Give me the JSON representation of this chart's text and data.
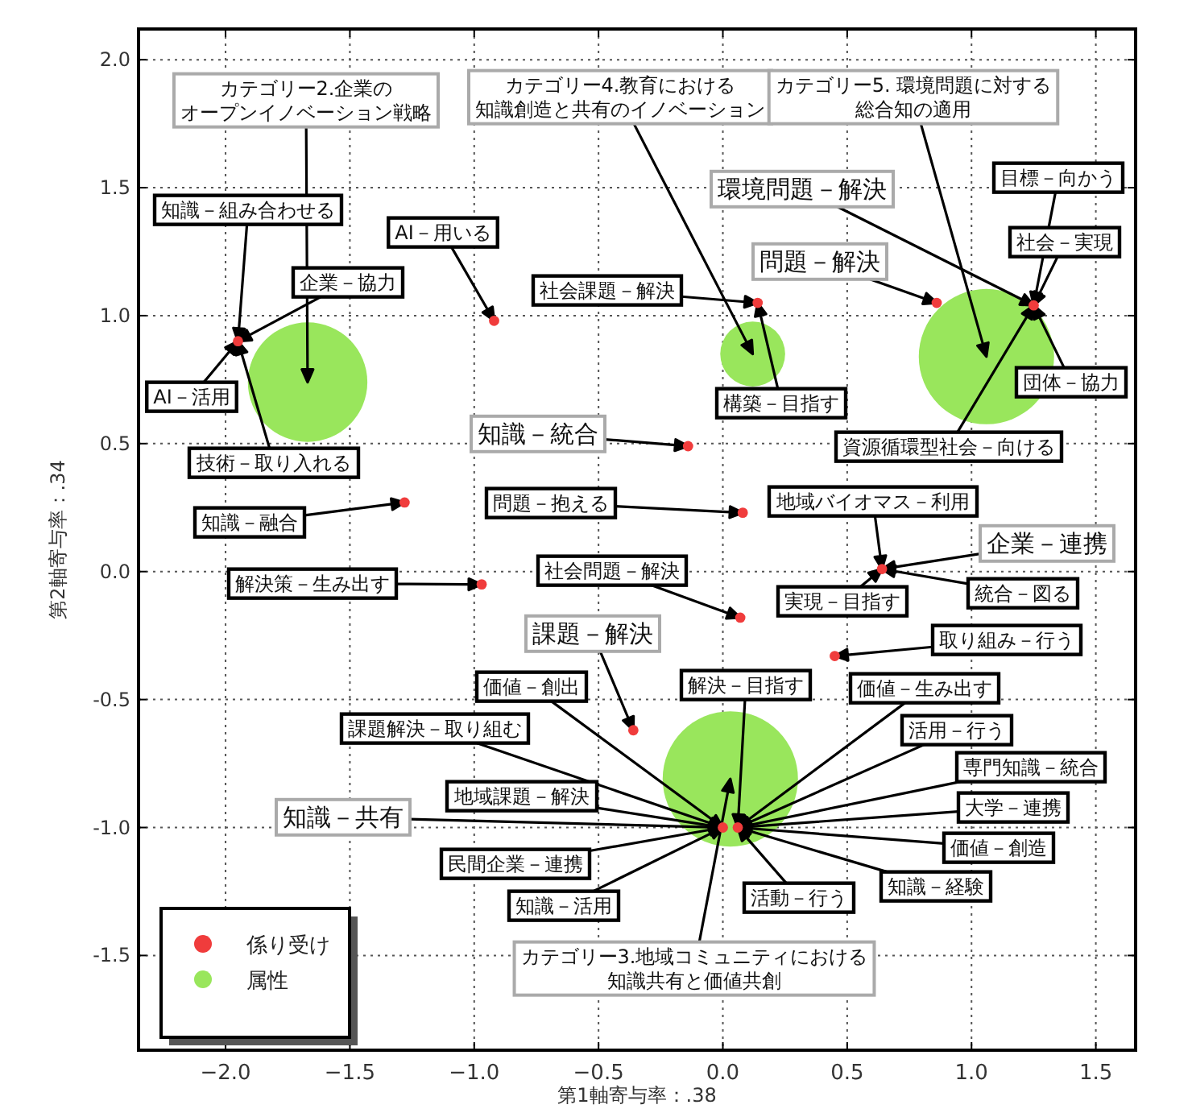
{
  "chart_data": {
    "type": "scatter",
    "xlabel": "第1軸寄与率：.38",
    "ylabel": "第2軸寄与率：.34",
    "xlim": [
      -2.35,
      1.66
    ],
    "ylim": [
      -1.87,
      2.12
    ],
    "xticks": [
      {
        "value": -2,
        "label": "−2.0"
      },
      {
        "value": -1.5,
        "label": "−1.5"
      },
      {
        "value": -1,
        "label": "−1.0"
      },
      {
        "value": -0.5,
        "label": "−0.5"
      },
      {
        "value": 0,
        "label": "0.0"
      },
      {
        "value": 0.5,
        "label": "0.5"
      },
      {
        "value": 1,
        "label": "1.0"
      },
      {
        "value": 1.5,
        "label": "1.5"
      }
    ],
    "yticks": [
      {
        "value": -1.5,
        "label": "-1.5"
      },
      {
        "value": -1,
        "label": "-1.0"
      },
      {
        "value": -0.5,
        "label": "-0.5"
      },
      {
        "value": 0,
        "label": "0.0"
      },
      {
        "value": 0.5,
        "label": "0.5"
      },
      {
        "value": 1,
        "label": "1.0"
      },
      {
        "value": 1.5,
        "label": "1.5"
      },
      {
        "value": 2,
        "label": "2.0"
      }
    ],
    "grid": true,
    "legend": "bottom left",
    "marker": "circle",
    "series": [
      {
        "name": "係り受け",
        "color": "#f03c3c",
        "x": [
          -1.95,
          -0.92,
          -1.28,
          0.14,
          1.25,
          0.86,
          -0.14,
          0.08,
          0.64,
          -0.97,
          0.07,
          0.45,
          -0.36,
          0.0,
          0.06
        ],
        "values": [
          0.9,
          0.98,
          0.27,
          1.05,
          1.04,
          1.05,
          0.49,
          0.23,
          0.01,
          -0.05,
          -0.18,
          -0.33,
          -0.62,
          -1.0,
          -1.0
        ]
      },
      {
        "name": "属性",
        "type": "bubble",
        "color": "#99e65c",
        "x": [
          -1.67,
          0.12,
          1.06,
          0.03
        ],
        "values": [
          0.74,
          0.85,
          0.84,
          -0.81
        ],
        "sizes": [
          0.78,
          0.23,
          1,
          1
        ]
      }
    ],
    "annotations": [
      {
        "text": "カテゴリー2.企業のオープンイノベーション戦略",
        "x": -1.67,
        "y": 0.74
      },
      {
        "text": "カテゴリー4.教育における知識創造と共有のイノベーション",
        "x": 0.12,
        "y": 0.85
      },
      {
        "text": "カテゴリー5. 環境問題に対する総合知の適用",
        "x": 1.06,
        "y": 0.84
      },
      {
        "text": "カテゴリー3.地域コミュニティにおける知識共有と価値共創",
        "x": 0.03,
        "y": -0.81
      },
      {
        "text": "知識－組み合わせる",
        "x": -1.95,
        "y": 0.9
      },
      {
        "text": "企業－協力",
        "x": -1.95,
        "y": 0.9
      },
      {
        "text": "AI－活用",
        "x": -1.95,
        "y": 0.9
      },
      {
        "text": "技術－取り入れる",
        "x": -1.95,
        "y": 0.9
      },
      {
        "text": "AI－用いる",
        "x": -0.92,
        "y": 0.98
      },
      {
        "text": "知識－融合",
        "x": -1.28,
        "y": 0.27
      },
      {
        "text": "社会課題－解決",
        "x": 0.14,
        "y": 1.05
      },
      {
        "text": "構築－目指す",
        "x": 0.14,
        "y": 1.05
      },
      {
        "text": "環境問題－解決",
        "x": 1.25,
        "y": 1.04
      },
      {
        "text": "問題－解決",
        "x": 0.86,
        "y": 1.05
      },
      {
        "text": "目標－向かう",
        "x": 1.25,
        "y": 1.04
      },
      {
        "text": "社会－実現",
        "x": 1.25,
        "y": 1.04
      },
      {
        "text": "団体－協力",
        "x": 1.25,
        "y": 1.04
      },
      {
        "text": "資源循環型社会－向ける",
        "x": 1.25,
        "y": 1.04
      },
      {
        "text": "知識－統合",
        "x": -0.14,
        "y": 0.49
      },
      {
        "text": "問題－抱える",
        "x": 0.08,
        "y": 0.23
      },
      {
        "text": "地域バイオマス－利用",
        "x": 0.64,
        "y": 0.01
      },
      {
        "text": "企業－連携",
        "x": 0.64,
        "y": 0.01
      },
      {
        "text": "実現－目指す",
        "x": 0.64,
        "y": 0.01
      },
      {
        "text": "統合－図る",
        "x": 0.64,
        "y": 0.01
      },
      {
        "text": "解決策－生み出す",
        "x": -0.97,
        "y": -0.05
      },
      {
        "text": "社会問題－解決",
        "x": 0.07,
        "y": -0.18
      },
      {
        "text": "取り組み－行う",
        "x": 0.45,
        "y": -0.33
      },
      {
        "text": "課題－解決",
        "x": -0.36,
        "y": -0.62
      },
      {
        "text": "価値－創出",
        "x": 0.0,
        "y": -1.0
      },
      {
        "text": "課題解決－取り組む",
        "x": 0.0,
        "y": -1.0
      },
      {
        "text": "地域課題－解決",
        "x": 0.0,
        "y": -1.0
      },
      {
        "text": "知識－共有",
        "x": 0.0,
        "y": -1.0
      },
      {
        "text": "民間企業－連携",
        "x": 0.0,
        "y": -1.0
      },
      {
        "text": "知識－活用",
        "x": 0.0,
        "y": -1.0
      },
      {
        "text": "解決－目指す",
        "x": 0.06,
        "y": -1.0
      },
      {
        "text": "価値－生み出す",
        "x": 0.06,
        "y": -1.0
      },
      {
        "text": "活用－行う",
        "x": 0.06,
        "y": -1.0
      },
      {
        "text": "専門知識－統合",
        "x": 0.06,
        "y": -1.0
      },
      {
        "text": "大学－連携",
        "x": 0.06,
        "y": -1.0
      },
      {
        "text": "価値－創造",
        "x": 0.06,
        "y": -1.0
      },
      {
        "text": "知識－経験",
        "x": 0.06,
        "y": -1.0
      },
      {
        "text": "活動－行う",
        "x": 0.06,
        "y": -1.0
      }
    ]
  }
}
